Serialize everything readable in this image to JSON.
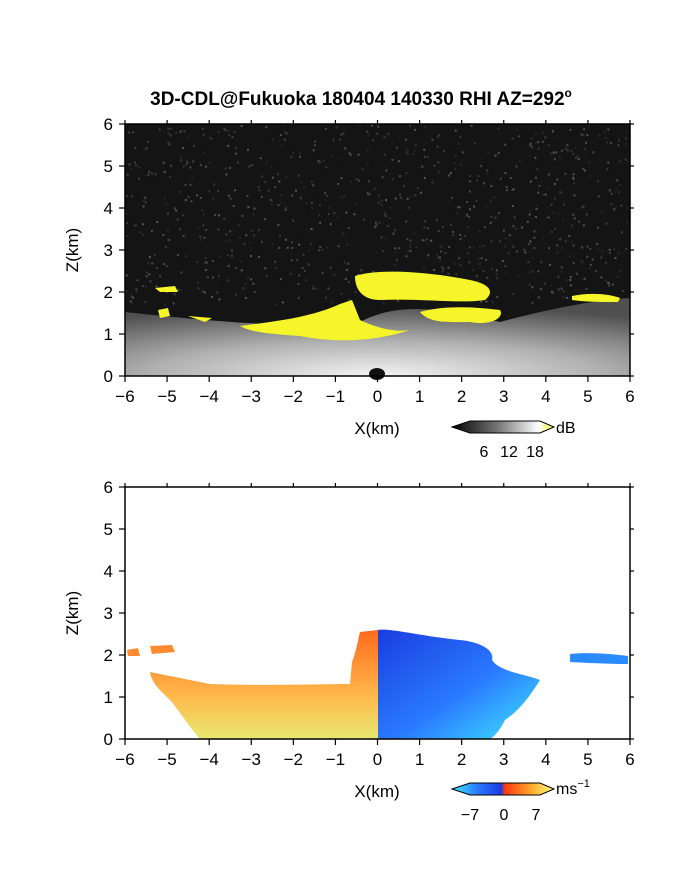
{
  "figure": {
    "title": "3D-CDL@Fukuoka 180404 140330 RHI AZ=292",
    "title_superscript": "o"
  },
  "colors": {
    "frame": "#000000",
    "background": "#ffffff",
    "snr_bg": "#141414",
    "snr_highlight": "#f5f52a",
    "vel_positive": [
      "#ff6a1e",
      "#ffd84a",
      "#e8e870"
    ],
    "vel_negative": [
      "#1a3de0",
      "#2a7aff",
      "#40e8ff"
    ]
  },
  "chart_data": [
    {
      "type": "heatmap",
      "quantity": "SNR",
      "xlabel": "X(km)",
      "ylabel": "Z(km)",
      "xlim": [
        -6,
        6
      ],
      "ylim": [
        0,
        6
      ],
      "xticks": [
        "−6",
        "−5",
        "−4",
        "−3",
        "−2",
        "−1",
        "0",
        "1",
        "2",
        "3",
        "4",
        "5",
        "6"
      ],
      "yticks": [
        "0",
        "1",
        "2",
        "3",
        "4",
        "5",
        "6"
      ],
      "colorbar": {
        "ticks": [
          6,
          12,
          18
        ],
        "unit": "dB",
        "colors": [
          "#000000",
          "#555555",
          "#aaaaaa",
          "#ffffff",
          "#f5f52a"
        ]
      },
      "features": [
        {
          "region": "boundary layer signal",
          "x_range": [
            -6,
            6
          ],
          "z_top_approx": 1.2
        },
        {
          "region": "elevated layer (>18 dB)",
          "x_range": [
            -0.5,
            3
          ],
          "z_range": [
            1.8,
            2.5
          ]
        }
      ]
    },
    {
      "type": "heatmap",
      "quantity": "Doppler velocity",
      "xlabel": "X(km)",
      "ylabel": "Z(km)",
      "xlim": [
        -6,
        6
      ],
      "ylim": [
        0,
        6
      ],
      "xticks": [
        "−6",
        "−5",
        "−4",
        "−3",
        "−2",
        "−1",
        "0",
        "1",
        "2",
        "3",
        "4",
        "5",
        "6"
      ],
      "yticks": [
        "0",
        "1",
        "2",
        "3",
        "4",
        "5",
        "6"
      ],
      "colorbar": {
        "ticks": [
          "−7",
          "0",
          "7"
        ],
        "unit": "ms",
        "unit_superscript": "−1",
        "colors": [
          "#40e8ff",
          "#1a3de0",
          "#ff3a10",
          "#ffd84a",
          "#ffff80"
        ]
      },
      "features": [
        {
          "region": "positive velocity",
          "x_range": [
            -6,
            0
          ],
          "z_top_approx": 1.3
        },
        {
          "region": "negative velocity",
          "x_range": [
            0,
            3
          ],
          "z_top_approx": 2.5
        }
      ]
    }
  ]
}
